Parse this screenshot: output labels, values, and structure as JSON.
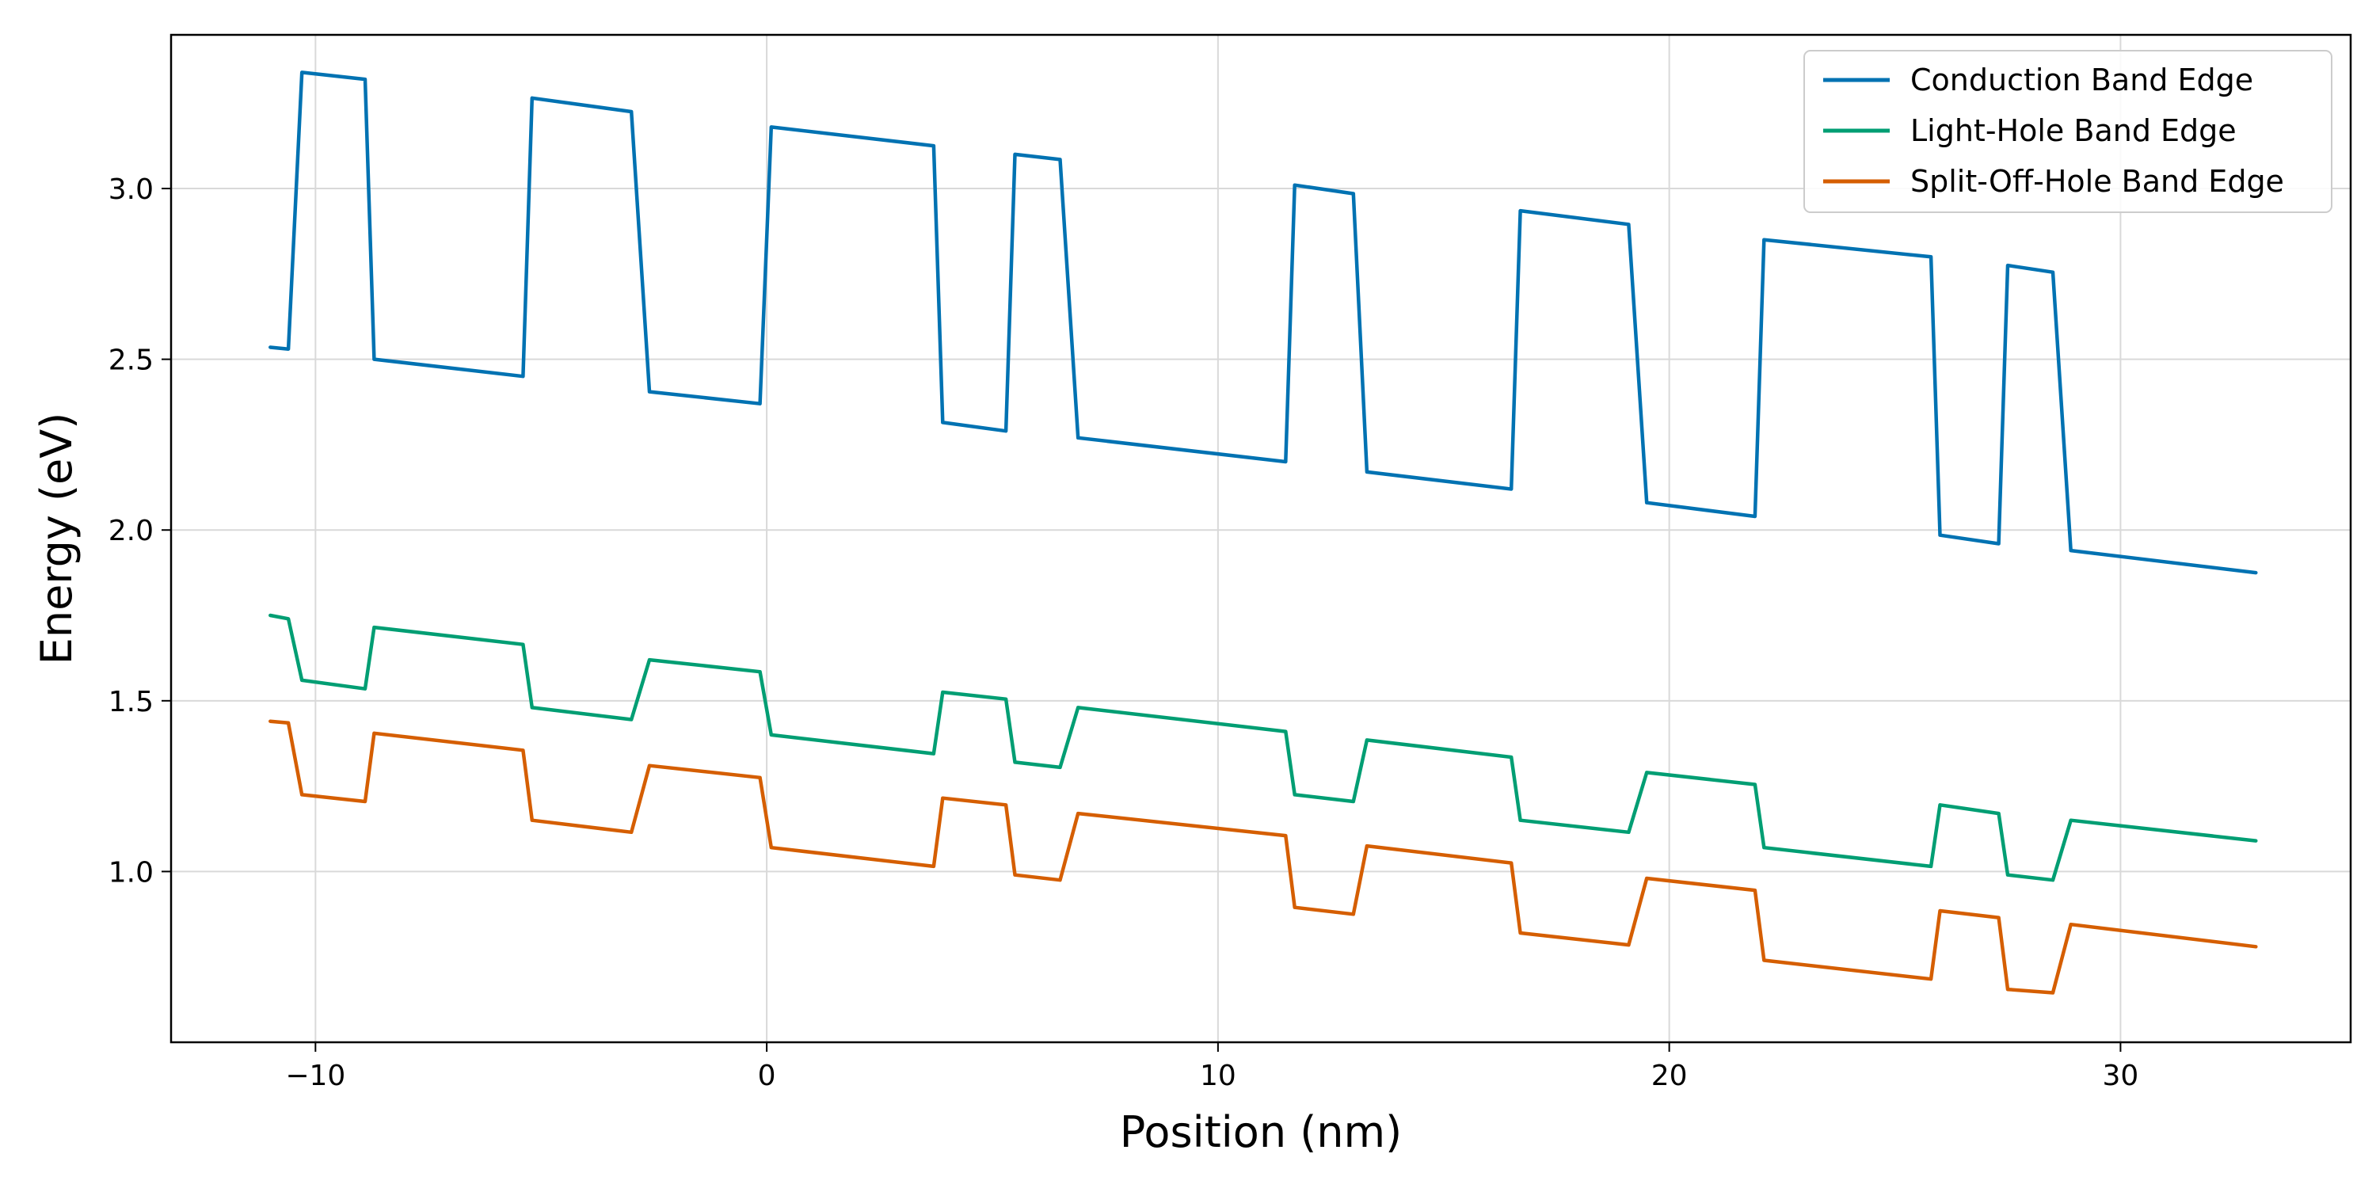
{
  "chart_data": {
    "type": "line",
    "xlabel": "Position (nm)",
    "ylabel": "Energy (eV)",
    "xlim": [
      -13.2,
      35.1
    ],
    "ylim": [
      0.5,
      3.45
    ],
    "xticks": [
      {
        "value": -10,
        "label": "−10"
      },
      {
        "value": 0,
        "label": "0"
      },
      {
        "value": 10,
        "label": "10"
      },
      {
        "value": 20,
        "label": "20"
      },
      {
        "value": 30,
        "label": "30"
      }
    ],
    "yticks": [
      {
        "value": 1.0,
        "label": "1.0"
      },
      {
        "value": 1.5,
        "label": "1.5"
      },
      {
        "value": 2.0,
        "label": "2.0"
      },
      {
        "value": 2.5,
        "label": "2.5"
      },
      {
        "value": 3.0,
        "label": "3.0"
      }
    ],
    "grid": true,
    "legend_position": "top-right",
    "series": [
      {
        "name": "Conduction Band Edge",
        "color": "#0072b2",
        "x": [
          -11.0,
          -10.6,
          -10.3,
          -8.9,
          -8.7,
          -5.4,
          -5.2,
          -3.0,
          -2.6,
          -0.15,
          0.1,
          3.7,
          3.9,
          5.3,
          5.5,
          6.5,
          6.9,
          11.5,
          11.7,
          13.0,
          13.3,
          16.5,
          16.7,
          19.1,
          19.5,
          21.9,
          22.1,
          25.8,
          26.0,
          27.3,
          27.5,
          28.5,
          28.9,
          33.0
        ],
        "y": [
          2.535,
          2.53,
          3.34,
          3.32,
          2.5,
          2.45,
          3.265,
          3.225,
          2.405,
          2.37,
          3.18,
          3.125,
          2.315,
          2.29,
          3.1,
          3.085,
          2.27,
          2.2,
          3.01,
          2.985,
          2.17,
          2.12,
          2.935,
          2.895,
          2.08,
          2.04,
          2.85,
          2.8,
          1.985,
          1.96,
          2.775,
          2.755,
          1.94,
          1.875
        ]
      },
      {
        "name": "Light-Hole Band Edge",
        "color": "#009e73",
        "x": [
          -11.0,
          -10.6,
          -10.3,
          -8.9,
          -8.7,
          -5.4,
          -5.2,
          -3.0,
          -2.6,
          -0.15,
          0.1,
          3.7,
          3.9,
          5.3,
          5.5,
          6.5,
          6.9,
          11.5,
          11.7,
          13.0,
          13.3,
          16.5,
          16.7,
          19.1,
          19.5,
          21.9,
          22.1,
          25.8,
          26.0,
          27.3,
          27.5,
          28.5,
          28.9,
          33.0
        ],
        "y": [
          1.75,
          1.74,
          1.56,
          1.535,
          1.715,
          1.665,
          1.48,
          1.445,
          1.62,
          1.585,
          1.4,
          1.345,
          1.525,
          1.505,
          1.32,
          1.305,
          1.48,
          1.41,
          1.225,
          1.205,
          1.385,
          1.335,
          1.15,
          1.115,
          1.29,
          1.255,
          1.07,
          1.015,
          1.195,
          1.17,
          0.99,
          0.975,
          1.15,
          1.09
        ]
      },
      {
        "name": "Split-Off-Hole Band Edge",
        "color": "#d55e00",
        "x": [
          -11.0,
          -10.6,
          -10.3,
          -8.9,
          -8.7,
          -5.4,
          -5.2,
          -3.0,
          -2.6,
          -0.15,
          0.1,
          3.7,
          3.9,
          5.3,
          5.5,
          6.5,
          6.9,
          11.5,
          11.7,
          13.0,
          13.3,
          16.5,
          16.7,
          19.1,
          19.5,
          21.9,
          22.1,
          25.8,
          26.0,
          27.3,
          27.5,
          28.5,
          28.9,
          33.0
        ],
        "y": [
          1.44,
          1.435,
          1.225,
          1.205,
          1.405,
          1.355,
          1.15,
          1.115,
          1.31,
          1.275,
          1.07,
          1.015,
          1.215,
          1.195,
          0.99,
          0.975,
          1.17,
          1.105,
          0.895,
          0.875,
          1.075,
          1.025,
          0.82,
          0.785,
          0.98,
          0.945,
          0.74,
          0.685,
          0.885,
          0.865,
          0.655,
          0.645,
          0.845,
          0.78
        ]
      }
    ]
  }
}
